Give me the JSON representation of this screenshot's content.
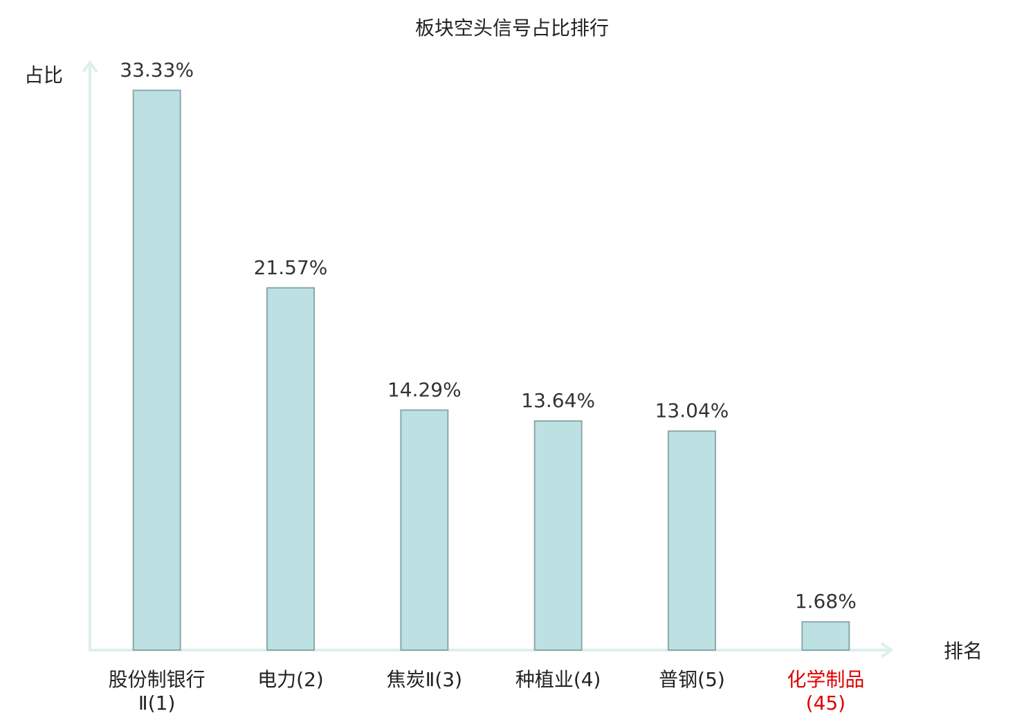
{
  "chart_data": {
    "type": "bar",
    "title": "板块空头信号占比排行",
    "y_label": "占比",
    "x_label": "排名",
    "categories": [
      "股份制银行Ⅱ(1)",
      "电力(2)",
      "焦炭Ⅱ(3)",
      "种植业(4)",
      "普钢(5)",
      "化学制品(45)"
    ],
    "category_colors": [
      "#222222",
      "#222222",
      "#222222",
      "#222222",
      "#222222",
      "#e00000"
    ],
    "values": [
      33.33,
      21.57,
      14.29,
      13.64,
      13.04,
      1.68
    ],
    "value_labels": [
      "33.33%",
      "21.57%",
      "14.29%",
      "13.64%",
      "13.04%",
      "1.68%"
    ],
    "color": "#bde0e3",
    "edge_color": "#8aa8aa",
    "ylim": [
      0,
      35
    ]
  }
}
